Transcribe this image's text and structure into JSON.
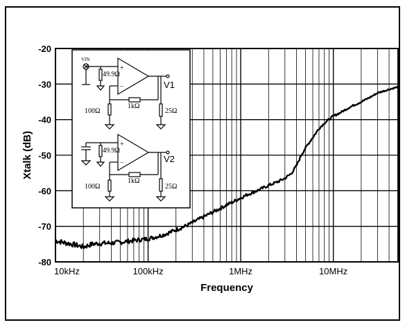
{
  "chart_data": {
    "type": "line",
    "title": "",
    "xlabel": "Frequency",
    "ylabel": "Xtalk (dB)",
    "xscale": "log",
    "xlim": [
      10000,
      50000000
    ],
    "ylim": [
      -80,
      -20
    ],
    "yticks": [
      -20,
      -30,
      -40,
      -50,
      -60,
      -70,
      -80
    ],
    "ytick_labels": [
      "-20",
      "-30",
      "-40",
      "-50",
      "-60",
      "-70",
      "-80"
    ],
    "xticks": [
      10000,
      100000,
      1000000,
      10000000
    ],
    "xtick_labels": [
      "10kHz",
      "100kHz",
      "1MHz",
      "10MHz"
    ],
    "grid": true,
    "series": [
      {
        "name": "",
        "color": "#000000",
        "x": [
          10000,
          12000,
          15000,
          18000,
          20000,
          25000,
          30000,
          40000,
          50000,
          60000,
          70000,
          80000,
          100000,
          120000,
          150000,
          200000,
          250000,
          300000,
          400000,
          500000,
          600000,
          700000,
          800000,
          1000000,
          1200000,
          1500000,
          2000000,
          2500000,
          3000000,
          3500000,
          4000000,
          4500000,
          5000000,
          6000000,
          7000000,
          8000000,
          10000000,
          12000000,
          15000000,
          20000000,
          25000000,
          30000000,
          40000000,
          50000000
        ],
        "y": [
          -74,
          -74.5,
          -75,
          -75.5,
          -75.8,
          -75,
          -74.8,
          -74.7,
          -74.5,
          -74.2,
          -74,
          -73.8,
          -73.5,
          -73,
          -72.3,
          -71,
          -70,
          -69,
          -67.3,
          -66,
          -65,
          -64,
          -63.3,
          -62,
          -61,
          -60,
          -58.5,
          -57.5,
          -56.5,
          -55.2,
          -53,
          -50,
          -48,
          -45,
          -42.5,
          -41,
          -39,
          -38,
          -36.5,
          -35,
          -33.7,
          -32.5,
          -31.5,
          -30.8
        ]
      }
    ],
    "inset": {
      "vin_label": "VIN",
      "r_in_top": "49.9Ω",
      "r_in_bottom": "49.9Ω",
      "r_feedback_top": "1kΩ",
      "r_feedback_bottom": "1kΩ",
      "r_gain_top": "100Ω",
      "r_gain_bottom": "100Ω",
      "r_load_top": "25Ω",
      "r_load_bottom": "25Ω",
      "out_top": "V1",
      "out_bottom": "V2",
      "plus": "+",
      "minus": "−"
    }
  }
}
